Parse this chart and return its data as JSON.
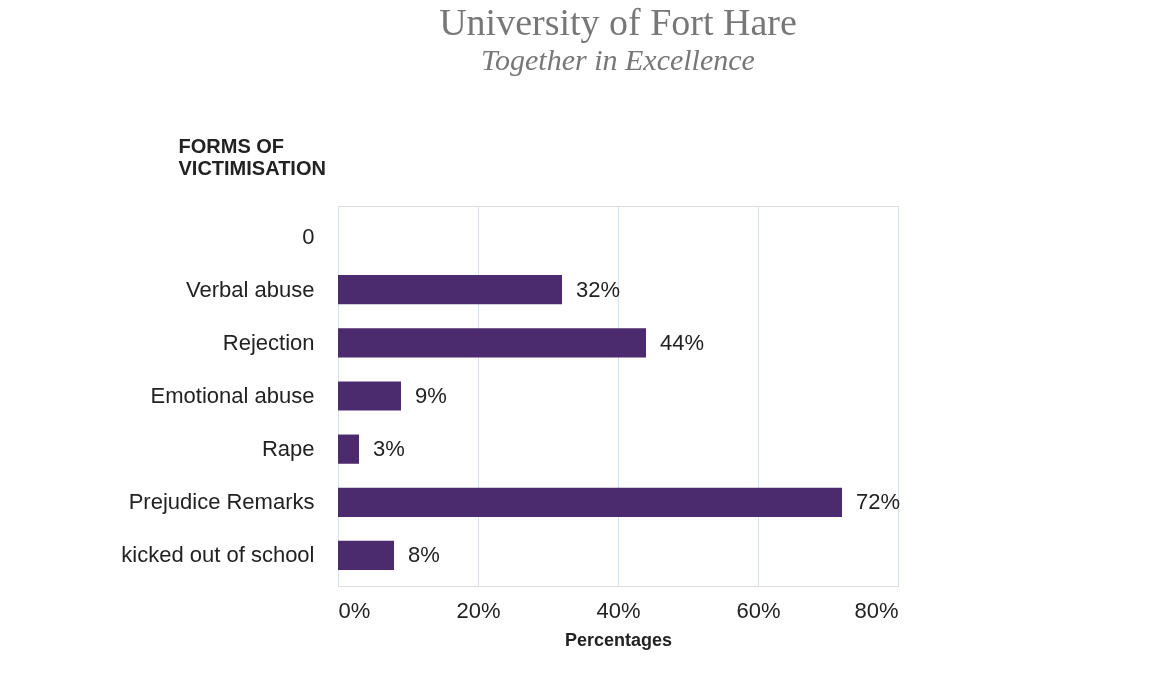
{
  "chart_data": {
    "type": "bar",
    "orientation": "horizontal",
    "title": "University of Fort Hare",
    "subtitle": "Together in Excellence",
    "ylabel": "FORMS OF VICTIMISATION",
    "xlabel": "Percentages",
    "categories": [
      "0",
      "Verbal abuse",
      "Rejection",
      "Emotional abuse",
      "Rape",
      "Prejudice Remarks",
      "kicked out of school"
    ],
    "values": [
      null,
      32,
      44,
      9,
      3,
      72,
      8
    ],
    "value_labels": [
      null,
      "32%",
      "44%",
      "9%",
      "3%",
      "72%",
      "8%"
    ],
    "color": "#4b2a6e",
    "xlim": [
      0,
      80
    ],
    "xticks": [
      {
        "value": 0,
        "label": "0%"
      },
      {
        "value": 20,
        "label": "20%"
      },
      {
        "value": 40,
        "label": "40%"
      },
      {
        "value": 60,
        "label": "60%"
      },
      {
        "value": 80,
        "label": "80%"
      }
    ],
    "grid": "x"
  }
}
